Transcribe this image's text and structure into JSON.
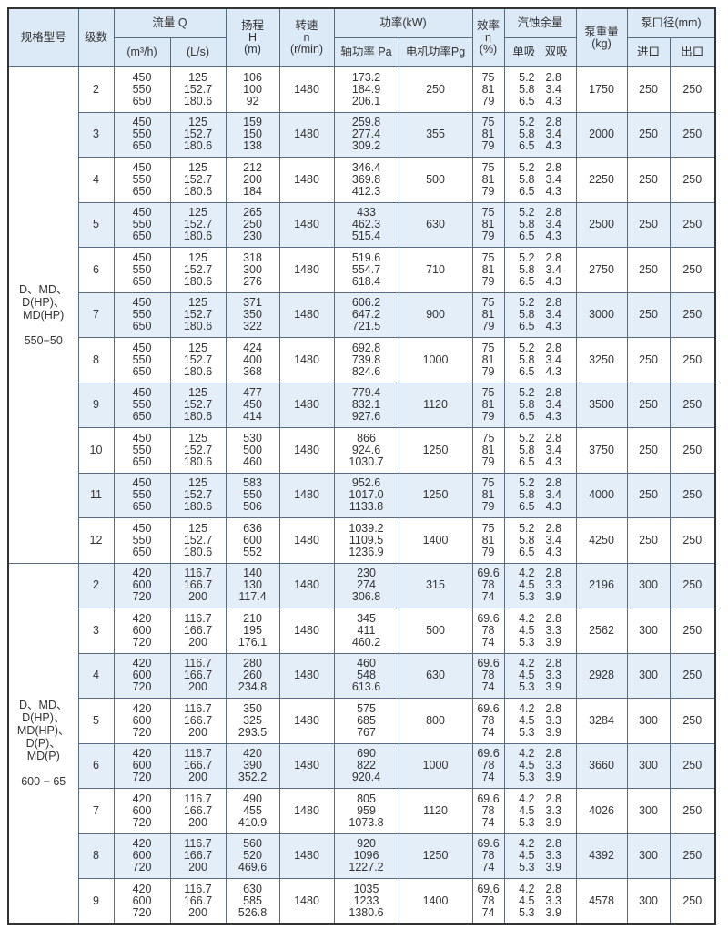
{
  "header": {
    "model": "规格型号",
    "stages": "级数",
    "flow": "流量 Q",
    "flow_m3h": "(m³/h)",
    "flow_ls": "(L/s)",
    "head": "扬程\nH\n(m)",
    "speed": "转速\nn\n(r/min)",
    "power": "功率(kW)",
    "shaft_power": "轴功率 Pa",
    "motor_power": "电机功率Pg",
    "efficiency": "效率\nη\n(%)",
    "npsh": "汽蚀余量",
    "npsh_single": "单吸",
    "npsh_double": "双吸",
    "weight": "泵重量\n(kg)",
    "diameter": "泵口径(mm)",
    "inlet": "进口",
    "outlet": "出口"
  },
  "groups": [
    {
      "model": "D、MD、\nD(HP)、\nMD(HP)\n\n550−50",
      "rows": [
        {
          "stages": "2",
          "q_m3h": "450\n550\n650",
          "q_ls": "125\n152.7\n180.6",
          "head": "106\n100\n92",
          "speed": "1480",
          "pa": "173.2\n184.9\n206.1",
          "pg": "250",
          "eff": "75\n81\n79",
          "single": "5.2\n5.8\n6.5",
          "double": "2.8\n3.4\n4.3",
          "weight": "1750",
          "inlet": "250",
          "outlet": "250"
        },
        {
          "stages": "3",
          "q_m3h": "450\n550\n650",
          "q_ls": "125\n152.7\n180.6",
          "head": "159\n150\n138",
          "speed": "1480",
          "pa": "259.8\n277.4\n309.2",
          "pg": "355",
          "eff": "75\n81\n79",
          "single": "5.2\n5.8\n6.5",
          "double": "2.8\n3.4\n4.3",
          "weight": "2000",
          "inlet": "250",
          "outlet": "250"
        },
        {
          "stages": "4",
          "q_m3h": "450\n550\n650",
          "q_ls": "125\n152.7\n180.6",
          "head": "212\n200\n184",
          "speed": "1480",
          "pa": "346.4\n369.8\n412.3",
          "pg": "500",
          "eff": "75\n81\n79",
          "single": "5.2\n5.8\n6.5",
          "double": "2.8\n3.4\n4.3",
          "weight": "2250",
          "inlet": "250",
          "outlet": "250"
        },
        {
          "stages": "5",
          "q_m3h": "450\n550\n650",
          "q_ls": "125\n152.7\n180.6",
          "head": "265\n250\n230",
          "speed": "1480",
          "pa": "433\n462.3\n515.4",
          "pg": "630",
          "eff": "75\n81\n79",
          "single": "5.2\n5.8\n6.5",
          "double": "2.8\n3.4\n4.3",
          "weight": "2500",
          "inlet": "250",
          "outlet": "250"
        },
        {
          "stages": "6",
          "q_m3h": "450\n550\n650",
          "q_ls": "125\n152.7\n180.6",
          "head": "318\n300\n276",
          "speed": "1480",
          "pa": "519.6\n554.7\n618.4",
          "pg": "710",
          "eff": "75\n81\n79",
          "single": "5.2\n5.8\n6.5",
          "double": "2.8\n3.4\n4.3",
          "weight": "2750",
          "inlet": "250",
          "outlet": "250"
        },
        {
          "stages": "7",
          "q_m3h": "450\n550\n650",
          "q_ls": "125\n152.7\n180.6",
          "head": "371\n350\n322",
          "speed": "1480",
          "pa": "606.2\n647.2\n721.5",
          "pg": "900",
          "eff": "75\n81\n79",
          "single": "5.2\n5.8\n6.5",
          "double": "2.8\n3.4\n4.3",
          "weight": "3000",
          "inlet": "250",
          "outlet": "250"
        },
        {
          "stages": "8",
          "q_m3h": "450\n550\n650",
          "q_ls": "125\n152.7\n180.6",
          "head": "424\n400\n368",
          "speed": "1480",
          "pa": "692.8\n739.8\n824.6",
          "pg": "1000",
          "eff": "75\n81\n79",
          "single": "5.2\n5.8\n6.5",
          "double": "2.8\n3.4\n4.3",
          "weight": "3250",
          "inlet": "250",
          "outlet": "250"
        },
        {
          "stages": "9",
          "q_m3h": "450\n550\n650",
          "q_ls": "125\n152.7\n180.6",
          "head": "477\n450\n414",
          "speed": "1480",
          "pa": "779.4\n832.1\n927.6",
          "pg": "1120",
          "eff": "75\n81\n79",
          "single": "5.2\n5.8\n6.5",
          "double": "2.8\n3.4\n4.3",
          "weight": "3500",
          "inlet": "250",
          "outlet": "250"
        },
        {
          "stages": "10",
          "q_m3h": "450\n550\n650",
          "q_ls": "125\n152.7\n180.6",
          "head": "530\n500\n460",
          "speed": "1480",
          "pa": "866\n924.6\n1030.7",
          "pg": "1250",
          "eff": "75\n81\n79",
          "single": "5.2\n5.8\n6.5",
          "double": "2.8\n3.4\n4.3",
          "weight": "3750",
          "inlet": "250",
          "outlet": "250"
        },
        {
          "stages": "11",
          "q_m3h": "450\n550\n650",
          "q_ls": "125\n152.7\n180.6",
          "head": "583\n550\n506",
          "speed": "1480",
          "pa": "952.6\n1017.0\n1133.8",
          "pg": "1250",
          "eff": "75\n81\n79",
          "single": "5.2\n5.8\n6.5",
          "double": "2.8\n3.4\n4.3",
          "weight": "4000",
          "inlet": "250",
          "outlet": "250"
        },
        {
          "stages": "12",
          "q_m3h": "450\n550\n650",
          "q_ls": "125\n152.7\n180.6",
          "head": "636\n600\n552",
          "speed": "1480",
          "pa": "1039.2\n1109.5\n1236.9",
          "pg": "1400",
          "eff": "75\n81\n79",
          "single": "5.2\n5.8\n6.5",
          "double": "2.8\n3.4\n4.3",
          "weight": "4250",
          "inlet": "250",
          "outlet": "250"
        }
      ]
    },
    {
      "model": "D、MD、\nD(HP)、\nMD(HP)、\nD(P)、\nMD(P)\n\n600 − 65",
      "rows": [
        {
          "stages": "2",
          "q_m3h": "420\n600\n720",
          "q_ls": "116.7\n166.7\n200",
          "head": "140\n130\n117.4",
          "speed": "1480",
          "pa": "230\n274\n306.8",
          "pg": "315",
          "eff": "69.6\n78\n74",
          "single": "4.2\n4.5\n5.3",
          "double": "2.8\n3.3\n3.9",
          "weight": "2196",
          "inlet": "300",
          "outlet": "250"
        },
        {
          "stages": "3",
          "q_m3h": "420\n600\n720",
          "q_ls": "116.7\n166.7\n200",
          "head": "210\n195\n176.1",
          "speed": "1480",
          "pa": "345\n411\n460.2",
          "pg": "500",
          "eff": "69.6\n78\n74",
          "single": "4.2\n4.5\n5.3",
          "double": "2.8\n3.3\n3.9",
          "weight": "2562",
          "inlet": "300",
          "outlet": "250"
        },
        {
          "stages": "4",
          "q_m3h": "420\n600\n720",
          "q_ls": "116.7\n166.7\n200",
          "head": "280\n260\n234.8",
          "speed": "1480",
          "pa": "460\n548\n613.6",
          "pg": "630",
          "eff": "69.6\n78\n74",
          "single": "4.2\n4.5\n5.3",
          "double": "2.8\n3.3\n3.9",
          "weight": "2928",
          "inlet": "300",
          "outlet": "250"
        },
        {
          "stages": "5",
          "q_m3h": "420\n600\n720",
          "q_ls": "116.7\n166.7\n200",
          "head": "350\n325\n293.5",
          "speed": "1480",
          "pa": "575\n685\n767",
          "pg": "800",
          "eff": "69.6\n78\n74",
          "single": "4.2\n4.5\n5.3",
          "double": "2.8\n3.3\n3.9",
          "weight": "3284",
          "inlet": "300",
          "outlet": "250"
        },
        {
          "stages": "6",
          "q_m3h": "420\n600\n720",
          "q_ls": "116.7\n166.7\n200",
          "head": "420\n390\n352.2",
          "speed": "1480",
          "pa": "690\n822\n920.4",
          "pg": "1000",
          "eff": "69.6\n78\n74",
          "single": "4.2\n4.5\n5.3",
          "double": "2.8\n3.3\n3.9",
          "weight": "3660",
          "inlet": "300",
          "outlet": "250"
        },
        {
          "stages": "7",
          "q_m3h": "420\n600\n720",
          "q_ls": "116.7\n166.7\n200",
          "head": "490\n455\n410.9",
          "speed": "1480",
          "pa": "805\n959\n1073.8",
          "pg": "1120",
          "eff": "69.6\n78\n74",
          "single": "4.2\n4.5\n5.3",
          "double": "2.8\n3.3\n3.9",
          "weight": "4026",
          "inlet": "300",
          "outlet": "250"
        },
        {
          "stages": "8",
          "q_m3h": "420\n600\n720",
          "q_ls": "116.7\n166.7\n200",
          "head": "560\n520\n469.6",
          "speed": "1480",
          "pa": "920\n1096\n1227.2",
          "pg": "1250",
          "eff": "69.6\n78\n74",
          "single": "4.2\n4.5\n5.3",
          "double": "2.8\n3.3\n3.9",
          "weight": "4392",
          "inlet": "300",
          "outlet": "250"
        },
        {
          "stages": "9",
          "q_m3h": "420\n600\n720",
          "q_ls": "116.7\n166.7\n200",
          "head": "630\n585\n526.8",
          "speed": "1480",
          "pa": "1035\n1233\n1380.6",
          "pg": "1400",
          "eff": "69.6\n78\n74",
          "single": "4.2\n4.5\n5.3",
          "double": "2.8\n3.3\n3.9",
          "weight": "4578",
          "inlet": "300",
          "outlet": "250"
        }
      ]
    }
  ]
}
